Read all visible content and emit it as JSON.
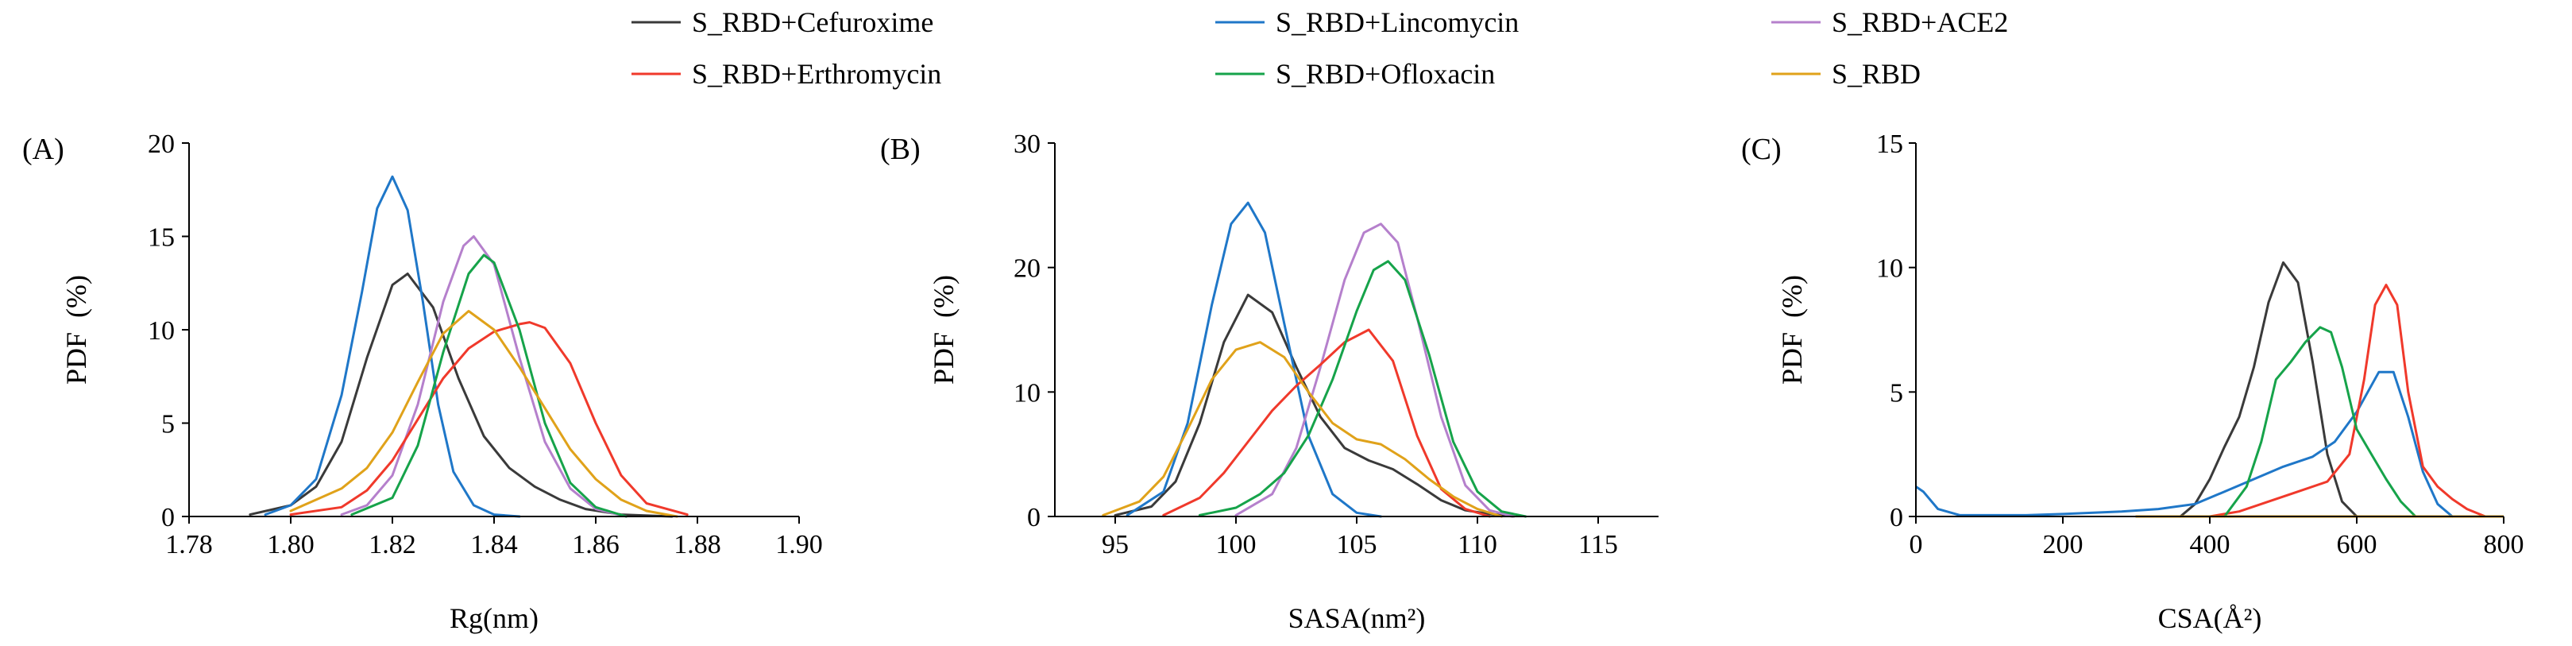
{
  "legend": [
    {
      "name": "S_RBD+Cefuroxime",
      "color": "#3a3a3a"
    },
    {
      "name": "S_RBD+Lincomycin",
      "color": "#1f77c8"
    },
    {
      "name": "S_RBD+ACE2",
      "color": "#b580cc"
    },
    {
      "name": "S_RBD+Erthromycin",
      "color": "#f0392b"
    },
    {
      "name": "S_RBD+Ofloxacin",
      "color": "#16a34a"
    },
    {
      "name": "S_RBD",
      "color": "#e0a21a"
    }
  ],
  "chart_data": [
    {
      "type": "line",
      "panel_label": "(A)",
      "xlabel": "Rg(nm)",
      "ylabel": "PDF  (%)",
      "xlim": [
        1.78,
        1.9
      ],
      "ylim": [
        0,
        20
      ],
      "xticks": [
        1.78,
        1.8,
        1.82,
        1.84,
        1.86,
        1.88,
        1.9
      ],
      "xtick_labels": [
        "1.78",
        "1.80",
        "1.82",
        "1.84",
        "1.86",
        "1.88",
        "1.90"
      ],
      "yticks": [
        0,
        5,
        10,
        15,
        20
      ],
      "ytick_labels": [
        "0",
        "5",
        "10",
        "15",
        "20"
      ],
      "series": [
        {
          "name": "S_RBD+Cefuroxime",
          "color": "#3a3a3a",
          "x": [
            1.792,
            1.8,
            1.805,
            1.81,
            1.815,
            1.82,
            1.823,
            1.828,
            1.833,
            1.838,
            1.843,
            1.848,
            1.853,
            1.858,
            1.865,
            1.875
          ],
          "y": [
            0.1,
            0.6,
            1.6,
            4.0,
            8.5,
            12.4,
            13.0,
            11.2,
            7.4,
            4.3,
            2.6,
            1.6,
            0.9,
            0.4,
            0.1,
            0
          ]
        },
        {
          "name": "S_RBD+Lincomycin",
          "color": "#1f77c8",
          "x": [
            1.795,
            1.8,
            1.805,
            1.81,
            1.814,
            1.817,
            1.82,
            1.823,
            1.826,
            1.829,
            1.832,
            1.836,
            1.84,
            1.845
          ],
          "y": [
            0.1,
            0.6,
            2.0,
            6.5,
            12.0,
            16.5,
            18.2,
            16.4,
            11.5,
            6.0,
            2.4,
            0.6,
            0.1,
            0
          ]
        },
        {
          "name": "S_RBD+ACE2",
          "color": "#b580cc",
          "x": [
            1.81,
            1.815,
            1.82,
            1.825,
            1.83,
            1.834,
            1.836,
            1.84,
            1.845,
            1.85,
            1.855,
            1.86,
            1.866
          ],
          "y": [
            0.1,
            0.6,
            2.2,
            6.0,
            11.5,
            14.5,
            15.0,
            13.5,
            8.5,
            4.0,
            1.5,
            0.4,
            0
          ]
        },
        {
          "name": "S_RBD+Erthromycin",
          "color": "#f0392b",
          "x": [
            1.8,
            1.81,
            1.815,
            1.82,
            1.825,
            1.83,
            1.835,
            1.84,
            1.845,
            1.847,
            1.85,
            1.855,
            1.86,
            1.865,
            1.87,
            1.878
          ],
          "y": [
            0.1,
            0.5,
            1.4,
            3.0,
            5.2,
            7.4,
            9.0,
            9.9,
            10.3,
            10.4,
            10.1,
            8.2,
            5.0,
            2.2,
            0.7,
            0.1
          ]
        },
        {
          "name": "S_RBD+Ofloxacin",
          "color": "#16a34a",
          "x": [
            1.812,
            1.82,
            1.825,
            1.83,
            1.835,
            1.838,
            1.84,
            1.845,
            1.85,
            1.855,
            1.86,
            1.866
          ],
          "y": [
            0.1,
            1.0,
            3.8,
            8.8,
            13.0,
            14.0,
            13.6,
            10.0,
            5.0,
            1.8,
            0.5,
            0
          ]
        },
        {
          "name": "S_RBD",
          "color": "#e0a21a",
          "x": [
            1.8,
            1.81,
            1.815,
            1.82,
            1.825,
            1.83,
            1.835,
            1.84,
            1.845,
            1.85,
            1.855,
            1.86,
            1.865,
            1.87,
            1.876
          ],
          "y": [
            0.3,
            1.5,
            2.6,
            4.5,
            7.2,
            9.8,
            11.0,
            10.0,
            8.0,
            5.8,
            3.6,
            2.0,
            0.9,
            0.3,
            0
          ]
        }
      ]
    },
    {
      "type": "line",
      "panel_label": "(B)",
      "xlabel": "SASA(nm²)",
      "ylabel": "PDF  (%)",
      "xlim": [
        92.5,
        117.5
      ],
      "ylim": [
        0,
        30
      ],
      "xticks": [
        95,
        100,
        105,
        110,
        115
      ],
      "xtick_labels": [
        "95",
        "100",
        "105",
        "110",
        "115"
      ],
      "yticks": [
        0,
        10,
        20,
        30
      ],
      "ytick_labels": [
        "0",
        "10",
        "20",
        "30"
      ],
      "series": [
        {
          "name": "S_RBD+Cefuroxime",
          "color": "#3a3a3a",
          "x": [
            95,
            96.5,
            97.5,
            98.5,
            99.5,
            100.5,
            101.5,
            102.5,
            103.5,
            104.5,
            105.5,
            106.5,
            107.5,
            108.5,
            109.5,
            110.5,
            111.5
          ],
          "y": [
            0.1,
            0.8,
            2.8,
            7.5,
            14.0,
            17.8,
            16.4,
            12.0,
            8.0,
            5.5,
            4.5,
            3.8,
            2.6,
            1.3,
            0.5,
            0.2,
            0
          ]
        },
        {
          "name": "S_RBD+Lincomycin",
          "color": "#1f77c8",
          "x": [
            95.5,
            97,
            98,
            99,
            99.8,
            100.5,
            101.2,
            102,
            103,
            104,
            105,
            106
          ],
          "y": [
            0.1,
            2.0,
            7.5,
            17.0,
            23.5,
            25.2,
            22.8,
            15.5,
            6.5,
            1.8,
            0.3,
            0
          ]
        },
        {
          "name": "S_RBD+ACE2",
          "color": "#b580cc",
          "x": [
            100,
            101.5,
            102.5,
            103.5,
            104.5,
            105.3,
            106,
            106.7,
            107.5,
            108.5,
            109.5,
            110.5,
            111.5
          ],
          "y": [
            0.1,
            1.8,
            5.5,
            12.0,
            19.0,
            22.8,
            23.5,
            22.0,
            16.0,
            8.0,
            2.5,
            0.5,
            0
          ]
        },
        {
          "name": "S_RBD+Erthromycin",
          "color": "#f0392b",
          "x": [
            97,
            98.5,
            99.5,
            100.5,
            101.5,
            102.5,
            103.5,
            104.5,
            105.5,
            106.5,
            107.5,
            108.5,
            109.5,
            110.5
          ],
          "y": [
            0.1,
            1.5,
            3.5,
            6.0,
            8.5,
            10.5,
            12.2,
            14.0,
            15.0,
            12.5,
            6.5,
            2.2,
            0.6,
            0
          ]
        },
        {
          "name": "S_RBD+Ofloxacin",
          "color": "#16a34a",
          "x": [
            98.5,
            100,
            101,
            102,
            103,
            104,
            105,
            105.7,
            106.3,
            107,
            108,
            109,
            110,
            111,
            112
          ],
          "y": [
            0.1,
            0.7,
            1.8,
            3.5,
            6.5,
            11.0,
            16.5,
            19.8,
            20.5,
            19.0,
            13.0,
            6.0,
            2.0,
            0.4,
            0
          ]
        },
        {
          "name": "S_RBD",
          "color": "#e0a21a",
          "x": [
            94.5,
            96,
            97,
            98,
            99,
            100,
            101,
            102,
            103,
            104,
            105,
            106,
            107,
            108,
            109,
            110,
            111
          ],
          "y": [
            0.1,
            1.2,
            3.2,
            7.0,
            11.0,
            13.4,
            14.0,
            12.8,
            10.0,
            7.5,
            6.2,
            5.8,
            4.6,
            3.0,
            1.6,
            0.6,
            0
          ]
        }
      ]
    },
    {
      "type": "line",
      "panel_label": "(C)",
      "xlabel": "CSA(Å²)",
      "ylabel": "PDF  (%)",
      "xlim": [
        0,
        800
      ],
      "ylim": [
        0,
        15
      ],
      "xticks": [
        0,
        200,
        400,
        600,
        800
      ],
      "xtick_labels": [
        "0",
        "200",
        "400",
        "600",
        "800"
      ],
      "yticks": [
        0,
        5,
        10,
        15
      ],
      "ytick_labels": [
        "0",
        "5",
        "10",
        "15"
      ],
      "series": [
        {
          "name": "S_RBD+Cefuroxime",
          "color": "#3a3a3a",
          "x": [
            360,
            380,
            400,
            420,
            440,
            460,
            480,
            500,
            520,
            540,
            560,
            580,
            600
          ],
          "y": [
            0,
            0.5,
            1.5,
            2.8,
            4.0,
            6.0,
            8.6,
            10.2,
            9.4,
            6.2,
            2.5,
            0.6,
            0
          ]
        },
        {
          "name": "S_RBD+Lincomycin",
          "color": "#1f77c8",
          "x": [
            0,
            10,
            30,
            60,
            150,
            200,
            280,
            330,
            380,
            420,
            460,
            500,
            540,
            570,
            600,
            630,
            650,
            670,
            690,
            710,
            730
          ],
          "y": [
            1.2,
            1.0,
            0.3,
            0.05,
            0.05,
            0.1,
            0.2,
            0.3,
            0.5,
            1.0,
            1.5,
            2.0,
            2.4,
            3.0,
            4.2,
            5.8,
            5.8,
            4.0,
            1.8,
            0.5,
            0
          ]
        },
        {
          "name": "S_RBD+ACE2",
          "color": "#b580cc",
          "x": [
            300,
            400,
            500,
            600,
            700,
            800
          ],
          "y": [
            0,
            0,
            0,
            0,
            0,
            0
          ]
        },
        {
          "name": "S_RBD+Erthromycin",
          "color": "#f0392b",
          "x": [
            400,
            440,
            480,
            520,
            560,
            590,
            610,
            625,
            640,
            655,
            670,
            690,
            710,
            730,
            750,
            775
          ],
          "y": [
            0,
            0.2,
            0.6,
            1.0,
            1.4,
            2.5,
            5.5,
            8.5,
            9.3,
            8.5,
            5.0,
            2.0,
            1.2,
            0.7,
            0.3,
            0
          ]
        },
        {
          "name": "S_RBD+Ofloxacin",
          "color": "#16a34a",
          "x": [
            420,
            450,
            470,
            490,
            510,
            530,
            550,
            565,
            580,
            600,
            620,
            640,
            660,
            680
          ],
          "y": [
            0,
            1.2,
            3.0,
            5.5,
            6.2,
            7.0,
            7.6,
            7.4,
            6.0,
            3.5,
            2.5,
            1.5,
            0.6,
            0
          ]
        },
        {
          "name": "S_RBD",
          "color": "#e0a21a",
          "x": [
            300,
            400,
            500,
            600,
            700,
            800
          ],
          "y": [
            0,
            0,
            0,
            0,
            0,
            0
          ]
        }
      ]
    }
  ]
}
